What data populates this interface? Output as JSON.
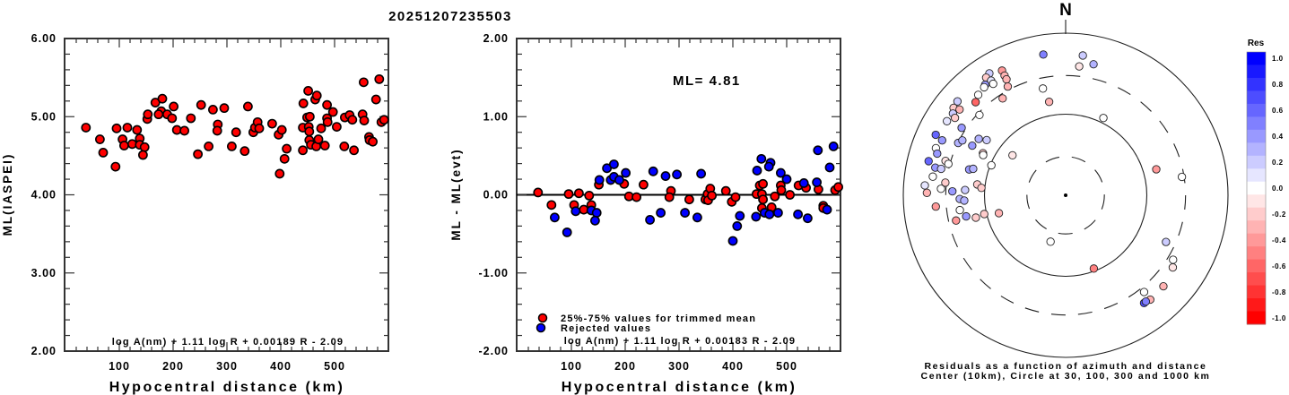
{
  "title": "20251207235503",
  "chart_data": [
    {
      "type": "scatter",
      "id": "ml-vs-distance",
      "xlabel": "Hypocentral distance (km)",
      "ylabel": "ML(IASPEI)",
      "xlim": [
        0,
        600
      ],
      "ylim": [
        2.0,
        6.0
      ],
      "x_ticks": [
        100,
        200,
        300,
        400,
        500
      ],
      "y_ticks": [
        "2.00",
        "3.00",
        "4.00",
        "5.00",
        "6.00"
      ],
      "formula": "log A(nm) + 1.11 log R + 0.00189 R - 2.09",
      "marker_color": "#ff0000",
      "points": [
        [
          38,
          4.86
        ],
        [
          64,
          4.71
        ],
        [
          70,
          4.54
        ],
        [
          93,
          4.36
        ],
        [
          95,
          4.85
        ],
        [
          106,
          4.71
        ],
        [
          109,
          4.63
        ],
        [
          115,
          4.86
        ],
        [
          124,
          4.65
        ],
        [
          133,
          4.83
        ],
        [
          138,
          4.72
        ],
        [
          138,
          4.64
        ],
        [
          147,
          4.61
        ],
        [
          144,
          4.51
        ],
        [
          152,
          4.97
        ],
        [
          153,
          5.03
        ],
        [
          167,
          5.18
        ],
        [
          180,
          5.23
        ],
        [
          178,
          5.07
        ],
        [
          173,
          5.03
        ],
        [
          189,
          5.03
        ],
        [
          201,
          5.13
        ],
        [
          198,
          4.98
        ],
        [
          207,
          4.83
        ],
        [
          221,
          4.82
        ],
        [
          233,
          4.98
        ],
        [
          252,
          5.15
        ],
        [
          246,
          4.52
        ],
        [
          266,
          4.62
        ],
        [
          274,
          5.09
        ],
        [
          283,
          4.9
        ],
        [
          282,
          4.82
        ],
        [
          295,
          5.11
        ],
        [
          309,
          4.62
        ],
        [
          317,
          4.8
        ],
        [
          333,
          4.56
        ],
        [
          339,
          5.13
        ],
        [
          349,
          4.8
        ],
        [
          352,
          4.86
        ],
        [
          357,
          4.93
        ],
        [
          360,
          4.85
        ],
        [
          384,
          4.91
        ],
        [
          396,
          4.77
        ],
        [
          402,
          4.83
        ],
        [
          411,
          4.59
        ],
        [
          407,
          4.46
        ],
        [
          398,
          4.27
        ],
        [
          441,
          4.57
        ],
        [
          442,
          5.17
        ],
        [
          451,
          5.33
        ],
        [
          464,
          5.22
        ],
        [
          467,
          5.27
        ],
        [
          449,
          4.99
        ],
        [
          454,
          5.0
        ],
        [
          441,
          4.86
        ],
        [
          452,
          4.87
        ],
        [
          453,
          4.81
        ],
        [
          453,
          4.7
        ],
        [
          456,
          4.64
        ],
        [
          466,
          4.62
        ],
        [
          470,
          4.71
        ],
        [
          475,
          4.85
        ],
        [
          482,
          4.63
        ],
        [
          486,
          5.15
        ],
        [
          486,
          4.98
        ],
        [
          487,
          4.93
        ],
        [
          497,
          5.06
        ],
        [
          504,
          4.87
        ],
        [
          518,
          4.62
        ],
        [
          519,
          4.99
        ],
        [
          528,
          5.02
        ],
        [
          533,
          4.96
        ],
        [
          536,
          4.57
        ],
        [
          552,
          5.03
        ],
        [
          555,
          4.95
        ],
        [
          554,
          5.44
        ],
        [
          564,
          4.74
        ],
        [
          565,
          4.7
        ],
        [
          571,
          4.68
        ],
        [
          577,
          5.22
        ],
        [
          583,
          5.48
        ],
        [
          587,
          4.93
        ],
        [
          592,
          4.96
        ]
      ]
    },
    {
      "type": "scatter",
      "id": "residual-vs-distance",
      "xlabel": "Hypocentral distance (km)",
      "ylabel": "ML - ML(evt)",
      "xlim": [
        0,
        600
      ],
      "ylim": [
        -2.0,
        2.0
      ],
      "x_ticks": [
        100,
        200,
        300,
        400,
        500
      ],
      "y_ticks": [
        "-2.00",
        "-1.00",
        "0.00",
        "1.00",
        "2.00"
      ],
      "annotation": "ML= 4.81",
      "formula": "log A(nm) + 1.11 log R + 0.00183 R - 2.09",
      "legend": [
        {
          "label": "25%-75% values for trimmed mean",
          "color": "#ff0000"
        },
        {
          "label": "Rejected values",
          "color": "#0000ff"
        }
      ],
      "legend_position": "bottom-left",
      "series": [
        {
          "name": "25%-75% values for trimmed mean",
          "color": "#ff0000",
          "points": [
            [
              38,
              0.03
            ],
            [
              63,
              -0.13
            ],
            [
              95,
              0.01
            ],
            [
              105,
              -0.13
            ],
            [
              114,
              0.02
            ],
            [
              123,
              -0.19
            ],
            [
              133,
              -0.01
            ],
            [
              137,
              -0.13
            ],
            [
              151,
              0.13
            ],
            [
              198,
              0.14
            ],
            [
              207,
              -0.02
            ],
            [
              221,
              -0.03
            ],
            [
              234,
              0.13
            ],
            [
              285,
              0.05
            ],
            [
              282,
              -0.03
            ],
            [
              319,
              -0.06
            ],
            [
              349,
              -0.06
            ],
            [
              353,
              0.01
            ],
            [
              354,
              -0.07
            ],
            [
              358,
              0.08
            ],
            [
              361,
              -0.01
            ],
            [
              387,
              0.05
            ],
            [
              398,
              -0.09
            ],
            [
              405,
              -0.03
            ],
            [
              444,
              0.01
            ],
            [
              450,
              0.12
            ],
            [
              456,
              0.14
            ],
            [
              454,
              0.01
            ],
            [
              456,
              -0.06
            ],
            [
              454,
              -0.17
            ],
            [
              472,
              -0.16
            ],
            [
              478,
              -0.02
            ],
            [
              489,
              0.12
            ],
            [
              490,
              0.06
            ],
            [
              506,
              0.0
            ],
            [
              522,
              0.12
            ],
            [
              536,
              0.09
            ],
            [
              559,
              0.07
            ],
            [
              568,
              -0.14
            ],
            [
              568,
              -0.17
            ],
            [
              590,
              0.06
            ],
            [
              596,
              0.1
            ]
          ]
        },
        {
          "name": "Rejected values",
          "color": "#0000ff",
          "points": [
            [
              69,
              -0.29
            ],
            [
              92,
              -0.48
            ],
            [
              108,
              -0.21
            ],
            [
              137,
              -0.2
            ],
            [
              147,
              -0.23
            ],
            [
              144,
              -0.33
            ],
            [
              152,
              0.19
            ],
            [
              166,
              0.34
            ],
            [
              179,
              0.39
            ],
            [
              173,
              0.19
            ],
            [
              179,
              0.23
            ],
            [
              189,
              0.19
            ],
            [
              201,
              0.28
            ],
            [
              246,
              -0.32
            ],
            [
              252,
              0.3
            ],
            [
              266,
              -0.23
            ],
            [
              275,
              0.24
            ],
            [
              296,
              0.26
            ],
            [
              311,
              -0.23
            ],
            [
              334,
              -0.29
            ],
            [
              341,
              0.27
            ],
            [
              400,
              -0.59
            ],
            [
              408,
              -0.4
            ],
            [
              413,
              -0.27
            ],
            [
              443,
              -0.28
            ],
            [
              445,
              0.31
            ],
            [
              453,
              0.46
            ],
            [
              459,
              -0.23
            ],
            [
              468,
              -0.25
            ],
            [
              470,
              0.41
            ],
            [
              467,
              0.36
            ],
            [
              484,
              -0.23
            ],
            [
              489,
              0.28
            ],
            [
              500,
              0.2
            ],
            [
              521,
              -0.25
            ],
            [
              532,
              0.15
            ],
            [
              539,
              -0.3
            ],
            [
              556,
              0.16
            ],
            [
              558,
              0.57
            ],
            [
              575,
              -0.19
            ],
            [
              580,
              0.35
            ],
            [
              587,
              0.62
            ]
          ]
        }
      ]
    },
    {
      "type": "scatter",
      "id": "residual-polar",
      "north_label": "N",
      "caption_line1": "Residuals as a function of azimuth and distance",
      "caption_line2": "Center (10km), Circle at 30, 100, 300 and 1000 km",
      "rings_km": [
        30,
        100,
        300,
        1000
      ],
      "center_km": 10,
      "points_fields": [
        "azimuth_deg",
        "distance_km",
        "residual"
      ],
      "points": [
        [
          351,
          573,
          0.5
        ],
        [
          7,
          546,
          0.2
        ],
        [
          12,
          449,
          0.25
        ],
        [
          6,
          397,
          -0.1
        ],
        [
          333,
          532,
          -0.4
        ],
        [
          333,
          454,
          -0.35
        ],
        [
          333,
          403,
          -0.3
        ],
        [
          332,
          330,
          -0.35
        ],
        [
          328,
          593,
          0.15
        ],
        [
          326,
          564,
          -0.2
        ],
        [
          327,
          485,
          0.1
        ],
        [
          327,
          436,
          0.0
        ],
        [
          324,
          485,
          0.4
        ],
        [
          323,
          466,
          0.0
        ],
        [
          319,
          438,
          0.0
        ],
        [
          348,
          222,
          -0.05
        ],
        [
          350,
          148,
          -0.3
        ],
        [
          327,
          266,
          -0.35
        ],
        [
          316,
          395,
          -0.6
        ],
        [
          311,
          583,
          0.15
        ],
        [
          308,
          565,
          -0.2
        ],
        [
          309,
          480,
          -0.3
        ],
        [
          306,
          520,
          0.2
        ],
        [
          305,
          462,
          -0.2
        ],
        [
          302,
          530,
          0.1
        ],
        [
          313,
          283,
          0.0
        ],
        [
          303,
          337,
          0.4
        ],
        [
          26,
          115,
          0.0
        ],
        [
          295,
          583,
          0.6
        ],
        [
          294,
          463,
          0.4
        ],
        [
          290,
          502,
          0.0
        ],
        [
          288,
          461,
          0.4
        ],
        [
          296,
          297,
          0.3
        ],
        [
          298,
          276,
          0.3
        ],
        [
          298,
          201,
          0.35
        ],
        [
          303,
          189,
          0.3
        ],
        [
          305,
          154,
          0.2
        ],
        [
          297,
          139,
          -0.2
        ],
        [
          296,
          135,
          0.0
        ],
        [
          307,
          66,
          -0.15
        ],
        [
          292,
          97,
          0.0
        ],
        [
          284,
          549,
          0.6
        ],
        [
          282,
          438,
          0.35
        ],
        [
          286,
          346,
          -0.15
        ],
        [
          285,
          313,
          -0.05
        ],
        [
          282,
          370,
          0.15
        ],
        [
          278,
          449,
          0.0
        ],
        [
          276,
          309,
          -0.25
        ],
        [
          285,
          170,
          0.4
        ],
        [
          286,
          153,
          0.3
        ],
        [
          74,
          145,
          -0.4
        ],
        [
          81,
          282,
          0.0
        ],
        [
          274,
          548,
          0.1
        ],
        [
          271,
          512,
          -0.3
        ],
        [
          273,
          345,
          0.0
        ],
        [
          272,
          249,
          0.35
        ],
        [
          273,
          174,
          0.2
        ],
        [
          277,
          125,
          -0.2
        ],
        [
          275,
          110,
          -0.25
        ],
        [
          268,
          202,
          0.3
        ],
        [
          267,
          178,
          0.3
        ],
        [
          265,
          403,
          -0.4
        ],
        [
          262,
          207,
          0.0
        ],
        [
          258,
          179,
          0.4
        ],
        [
          257,
          243,
          -0.45
        ],
        [
          256,
          138,
          -0.2
        ],
        [
          257,
          107,
          -0.25
        ],
        [
          255,
          71,
          -0.35
        ],
        [
          198,
          40,
          0.0
        ],
        [
          159,
          93,
          -0.55
        ],
        [
          115,
          231,
          0.15
        ],
        [
          121,
          350,
          0.0
        ],
        [
          124,
          391,
          -0.15
        ],
        [
          133,
          443,
          -0.3
        ],
        [
          141,
          343,
          -0.05
        ],
        [
          141,
          453,
          -0.3
        ],
        [
          144,
          440,
          0.7
        ],
        [
          143,
          438,
          0.5
        ]
      ]
    },
    {
      "type": "heatmap",
      "id": "residual-colorbar",
      "title": "Res",
      "range": [
        -1.0,
        1.0
      ],
      "tick_labels": [
        "1.0",
        "0.8",
        "0.6",
        "0.4",
        "0.2",
        "0.0",
        "-0.2",
        "-0.4",
        "-0.6",
        "-0.8",
        "-1.0"
      ],
      "low_color": "#ff0000",
      "mid_color": "#ffffff",
      "high_color": "#0000ff"
    }
  ]
}
